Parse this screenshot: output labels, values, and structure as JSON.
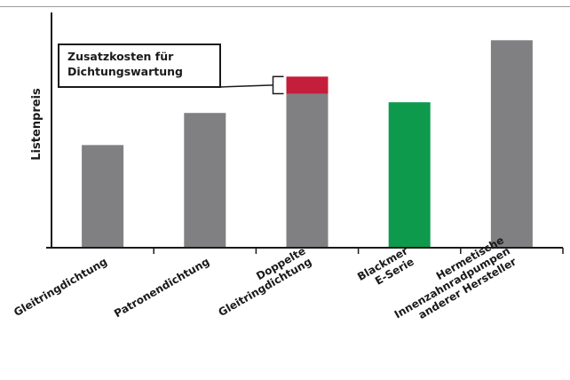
{
  "chart_data": {
    "type": "bar",
    "ylabel": "Listenpreis",
    "xlabel": "",
    "title": "",
    "categories": [
      [
        "Gleitringdichtung"
      ],
      [
        "Patronendichtung"
      ],
      [
        "Doppelte",
        "Gleitringdichtung"
      ],
      [
        "Blackmer",
        "E-Serie"
      ],
      [
        "Hermetische",
        "Innenzahnradpumpen",
        "anderer Hersteller"
      ]
    ],
    "values": [
      48,
      63,
      72,
      68,
      97
    ],
    "stacked_extra": [
      {
        "category_index": 2,
        "value": 8,
        "label": "Zusatzkosten für Dichtungswartung"
      }
    ],
    "annotation": {
      "lines": [
        "Zusatzkosten für",
        "Dichtungswartung"
      ],
      "target_category_index": 2
    },
    "colors": {
      "bar_default": "#808083",
      "highlight": "#0d9a4c",
      "extra": "#c41e3a"
    },
    "highlight_index": 3,
    "ylim": [
      0,
      110
    ],
    "grid": false
  }
}
